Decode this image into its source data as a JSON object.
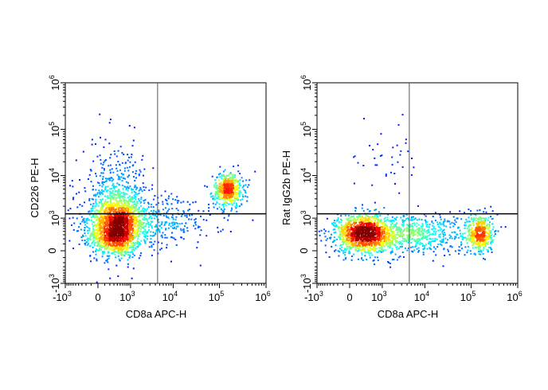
{
  "chart_data": [
    {
      "type": "scatter",
      "subtype": "flow-cytometry-density-dot-plot",
      "title": "",
      "xlabel": "CD8a APC-H",
      "ylabel": "CD226 PE-H",
      "x_scale": "biexponential",
      "y_scale": "biexponential",
      "xlim": [
        -1000,
        1000000
      ],
      "ylim": [
        -1000,
        1000000
      ],
      "x_ticks": [
        {
          "value": -1000,
          "base": "-10",
          "exp": "3"
        },
        {
          "value": 0,
          "base": "0",
          "exp": ""
        },
        {
          "value": 1000,
          "base": "10",
          "exp": "3"
        },
        {
          "value": 10000,
          "base": "10",
          "exp": "4"
        },
        {
          "value": 100000,
          "base": "10",
          "exp": "5"
        },
        {
          "value": 1000000,
          "base": "10",
          "exp": "6"
        }
      ],
      "y_ticks": [
        {
          "value": -1000,
          "base": "-10",
          "exp": "3"
        },
        {
          "value": 0,
          "base": "0",
          "exp": ""
        },
        {
          "value": 1000,
          "base": "10",
          "exp": "3"
        },
        {
          "value": 10000,
          "base": "10",
          "exp": "4"
        },
        {
          "value": 100000,
          "base": "10",
          "exp": "5"
        },
        {
          "value": 1000000,
          "base": "10",
          "exp": "6"
        }
      ],
      "gates": {
        "x": 4500,
        "y": 1300
      },
      "color_scale": "density: blue (low) to red (high)",
      "grid": false,
      "populations": [
        {
          "x": 350,
          "y": 350,
          "x_spread": 0.6,
          "y_spread": 0.55,
          "count": 1200,
          "peak": "red"
        },
        {
          "x": 350,
          "y": 1400,
          "x_spread": 0.55,
          "y_spread": 0.7,
          "count": 700,
          "peak": "yellow"
        },
        {
          "x": 150000,
          "y": 5000,
          "x_spread": 0.35,
          "y_spread": 0.4,
          "count": 550,
          "peak": "yellow"
        },
        {
          "x": 1500,
          "y": 800,
          "x_spread": 1.8,
          "y_spread": 0.6,
          "count": 650,
          "peak": "blue"
        },
        {
          "x": 300,
          "y": 5000,
          "x_spread": 0.8,
          "y_spread": 1.2,
          "count": 300,
          "peak": "blue"
        }
      ]
    },
    {
      "type": "scatter",
      "subtype": "flow-cytometry-density-dot-plot",
      "title": "",
      "xlabel": "CD8a APC-H",
      "ylabel": "Rat IgG2b PE-H",
      "x_scale": "biexponential",
      "y_scale": "biexponential",
      "xlim": [
        -1000,
        1000000
      ],
      "ylim": [
        -1000,
        1000000
      ],
      "x_ticks": [
        {
          "value": -1000,
          "base": "-10",
          "exp": "3"
        },
        {
          "value": 0,
          "base": "0",
          "exp": ""
        },
        {
          "value": 1000,
          "base": "10",
          "exp": "3"
        },
        {
          "value": 10000,
          "base": "10",
          "exp": "4"
        },
        {
          "value": 100000,
          "base": "10",
          "exp": "5"
        },
        {
          "value": 1000000,
          "base": "10",
          "exp": "6"
        }
      ],
      "y_ticks": [
        {
          "value": -1000,
          "base": "-10",
          "exp": "3"
        },
        {
          "value": 0,
          "base": "0",
          "exp": ""
        },
        {
          "value": 1000,
          "base": "10",
          "exp": "3"
        },
        {
          "value": 10000,
          "base": "10",
          "exp": "4"
        },
        {
          "value": 100000,
          "base": "10",
          "exp": "5"
        },
        {
          "value": 1000000,
          "base": "10",
          "exp": "6"
        }
      ],
      "gates": {
        "x": 4500,
        "y": 1300
      },
      "color_scale": "density: blue (low) to red (high)",
      "grid": false,
      "populations": [
        {
          "x": 250,
          "y": 350,
          "x_spread": 0.7,
          "y_spread": 0.45,
          "count": 1300,
          "peak": "red"
        },
        {
          "x": 150000,
          "y": 350,
          "x_spread": 0.3,
          "y_spread": 0.5,
          "count": 450,
          "peak": "yellow"
        },
        {
          "x": 5000,
          "y": 350,
          "x_spread": 1.5,
          "y_spread": 0.45,
          "count": 650,
          "peak": "blue"
        },
        {
          "x": 1000,
          "y": 20000,
          "x_spread": 0.8,
          "y_spread": 1.3,
          "count": 40,
          "peak": "blue"
        }
      ]
    }
  ]
}
